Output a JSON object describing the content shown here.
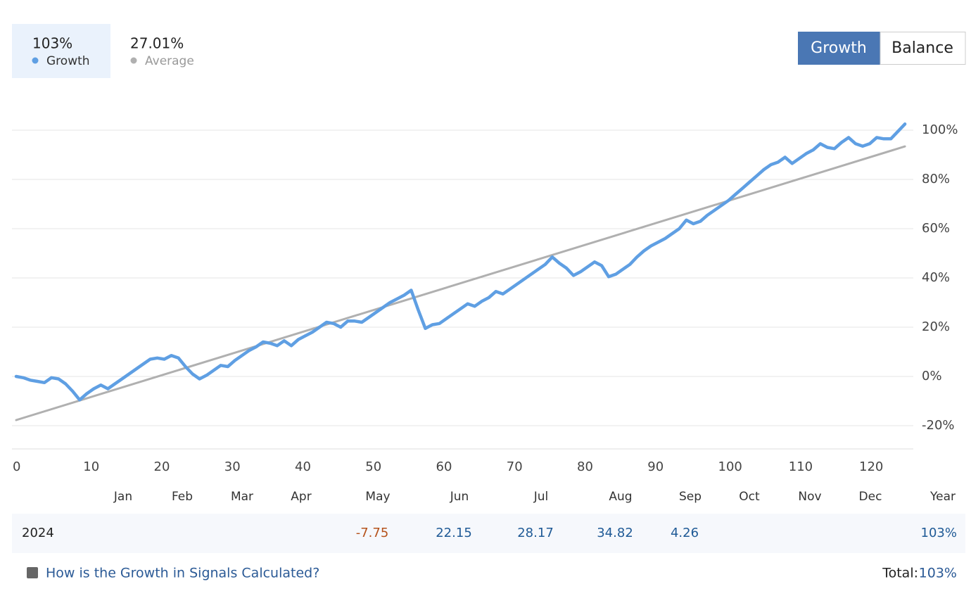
{
  "header": {
    "stats": [
      {
        "value": "103%",
        "label": "Growth"
      },
      {
        "value": "27.01%",
        "label": "Average"
      }
    ],
    "tabs": [
      "Growth",
      "Balance"
    ]
  },
  "chart_data": {
    "type": "line",
    "series": [
      {
        "name": "Growth",
        "color": "#5f9fe3",
        "x": [
          0,
          1,
          2,
          3,
          4,
          5,
          6,
          7,
          8,
          9,
          10,
          11,
          12,
          13,
          14,
          15,
          16,
          17,
          18,
          19,
          20,
          21,
          22,
          23,
          24,
          25,
          26,
          27,
          28,
          29,
          30,
          31,
          32,
          33,
          34,
          35,
          36,
          37,
          38,
          39,
          40,
          41,
          42,
          43,
          44,
          45,
          46,
          47,
          48,
          49,
          50,
          51,
          52,
          53,
          54,
          55,
          56,
          57,
          58,
          59,
          60,
          61,
          62,
          63,
          64,
          65,
          66,
          67,
          68,
          69,
          70,
          71,
          72,
          73,
          74,
          75,
          76,
          77,
          78,
          79,
          80,
          81,
          82,
          83,
          84,
          85,
          86,
          87,
          88,
          89,
          90,
          91,
          92,
          93,
          94,
          95,
          96,
          97,
          98,
          99,
          100,
          101,
          102,
          103,
          104,
          105,
          106,
          107,
          108,
          109,
          110,
          111,
          112,
          113,
          114,
          115,
          116,
          117,
          118,
          119,
          120,
          121,
          122,
          123,
          124,
          125,
          126
        ],
        "values": [
          0,
          -0.5,
          -1.5,
          -2,
          -2.5,
          -0.5,
          -1,
          -3,
          -6,
          -9.5,
          -7,
          -5,
          -3.5,
          -5,
          -3,
          -1,
          1,
          3,
          5,
          7,
          7.5,
          7,
          8.5,
          7.5,
          4,
          1,
          -1,
          0.5,
          2.5,
          4.5,
          4,
          6.5,
          8.5,
          10.5,
          12,
          14,
          13.5,
          12.5,
          14.5,
          12.5,
          15,
          16.5,
          18,
          20,
          22,
          21.5,
          20,
          22.5,
          22.5,
          22,
          24,
          26,
          28,
          30,
          31.5,
          33,
          35,
          27,
          19.5,
          21,
          21.5,
          23.5,
          25.5,
          27.5,
          29.5,
          28.5,
          30.5,
          32,
          34.5,
          33.5,
          35.5,
          37.5,
          39.5,
          41.5,
          43.5,
          45.5,
          48.5,
          46,
          44,
          41,
          42.5,
          44.5,
          46.5,
          45,
          40.5,
          41.5,
          43.5,
          45.5,
          48.5,
          51,
          53,
          54.5,
          56,
          58,
          60,
          63.5,
          62,
          63,
          65.5,
          67.5,
          69.5,
          71.5,
          74,
          76.5,
          79,
          81.5,
          84,
          86,
          87,
          89,
          86.5,
          88.5,
          90.5,
          92,
          94.5,
          93,
          92.5,
          95,
          97,
          94.5,
          93.5,
          94.5,
          97,
          96.5,
          96.5,
          99.5,
          102.5
        ]
      },
      {
        "name": "Average",
        "color": "#b0b0b0",
        "x": [
          0,
          126
        ],
        "values": [
          -17.7,
          93.4
        ]
      }
    ],
    "xlim": [
      0,
      127
    ],
    "ylim": [
      -30,
      110
    ],
    "xticks": [
      0,
      10,
      20,
      30,
      40,
      50,
      60,
      70,
      80,
      90,
      100,
      110,
      120
    ],
    "yticks": [
      {
        "value": -20,
        "label": "-20%"
      },
      {
        "value": 0,
        "label": "0%"
      },
      {
        "value": 20,
        "label": "20%"
      },
      {
        "value": 40,
        "label": "40%"
      },
      {
        "value": 60,
        "label": "60%"
      },
      {
        "value": 80,
        "label": "80%"
      },
      {
        "value": 100,
        "label": "100%"
      }
    ],
    "grid": true
  },
  "monthly_table": {
    "months": [
      "Jan",
      "Feb",
      "Mar",
      "Apr",
      "May",
      "Jun",
      "Jul",
      "Aug",
      "Sep",
      "Oct",
      "Nov",
      "Dec"
    ],
    "total_label": "Year",
    "rows": [
      {
        "year": "2024",
        "cells": [
          null,
          null,
          null,
          null,
          -7.75,
          22.15,
          28.17,
          34.82,
          4.26,
          null,
          null,
          null
        ],
        "total": "103%"
      }
    ]
  },
  "footer": {
    "link": "How is the Growth in Signals Calculated?",
    "total_label": "Total:",
    "total": "103%"
  }
}
